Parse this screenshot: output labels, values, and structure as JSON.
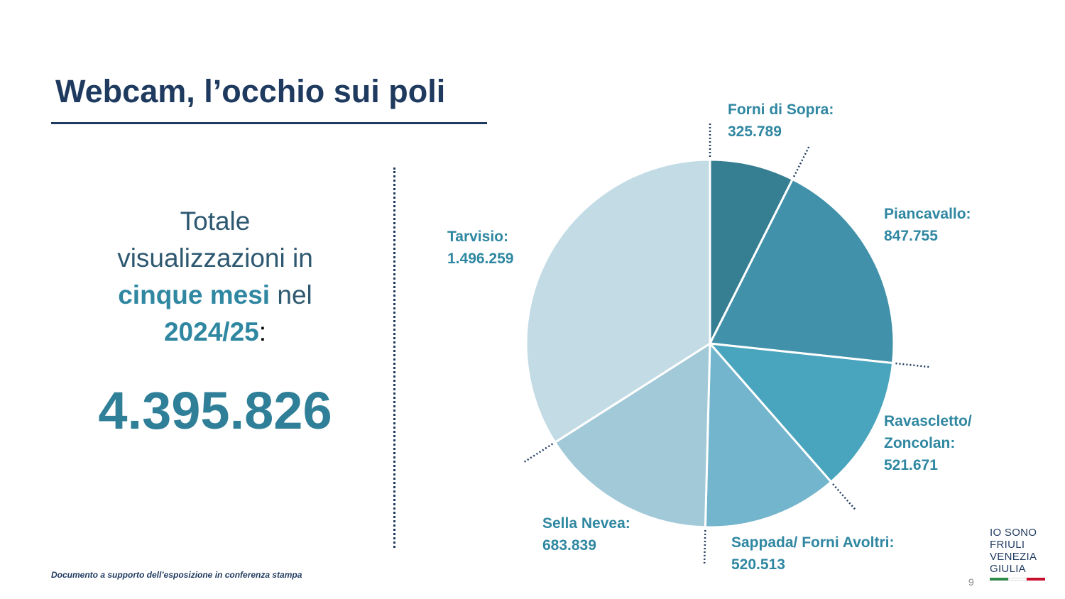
{
  "slide": {
    "title": "Webcam, l’occhio sui poli",
    "summary": {
      "line1": "Totale",
      "line2": "visualizzazioni in",
      "line3_highlight": "cinque mesi",
      "line3_rest": " nel",
      "line4_highlight": "2024/25",
      "line4_rest": ":",
      "total": "4.395.826"
    },
    "footer": "Documento a supporto dell’esposizione in conferenza stampa",
    "page_number": "9",
    "logo": {
      "line1": "IO SONO",
      "line2": "FRIULI",
      "line3": "VENEZIA",
      "line4": "GIULIA",
      "flag_colors": [
        "#2e8b4a",
        "#ffffff",
        "#c8102e"
      ]
    }
  },
  "colors": {
    "title": "#1f3a5f",
    "accent": "#2f87a1",
    "leader": "#1f3a5f"
  },
  "chart_data": {
    "type": "pie",
    "slices": [
      {
        "name": "Forni di Sopra:",
        "value_label": "325.789",
        "value": 325789,
        "color": "#367e92"
      },
      {
        "name": "Piancavallo:",
        "value_label": "847.755",
        "value": 847755,
        "color": "#4291aa"
      },
      {
        "name": "Ravascletto/ Zoncolan:",
        "value_label": "521.671",
        "value": 521671,
        "color": "#49a4bd"
      },
      {
        "name": "Sappada/ Forni Avoltri:",
        "value_label": "520.513",
        "value": 520513,
        "color": "#72b5cc"
      },
      {
        "name": "Sella Nevea:",
        "value_label": "683.839",
        "value": 683839,
        "color": "#a2c9d8"
      },
      {
        "name": "Tarvisio:",
        "value_label": "1.496.259",
        "value": 1496259,
        "color": "#c2dbe5"
      }
    ],
    "start_angle": "12 o'clock",
    "direction": "clockwise"
  }
}
